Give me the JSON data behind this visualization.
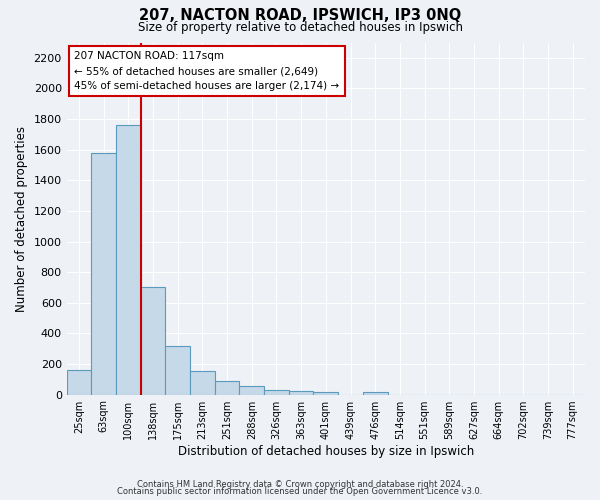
{
  "title": "207, NACTON ROAD, IPSWICH, IP3 0NQ",
  "subtitle": "Size of property relative to detached houses in Ipswich",
  "xlabel": "Distribution of detached houses by size in Ipswich",
  "ylabel": "Number of detached properties",
  "bar_color": "#c5d9e8",
  "bar_edge_color": "#5a9abf",
  "background_color": "#eef2f7",
  "grid_color": "#ffffff",
  "annotation_box_color": "#ffffff",
  "annotation_box_edge": "#cc0000",
  "vline_color": "#cc0000",
  "bin_labels": [
    "25sqm",
    "63sqm",
    "100sqm",
    "138sqm",
    "175sqm",
    "213sqm",
    "251sqm",
    "288sqm",
    "326sqm",
    "363sqm",
    "401sqm",
    "439sqm",
    "476sqm",
    "514sqm",
    "551sqm",
    "589sqm",
    "627sqm",
    "664sqm",
    "702sqm",
    "739sqm",
    "777sqm"
  ],
  "bar_values": [
    160,
    1580,
    1760,
    700,
    315,
    155,
    90,
    55,
    30,
    25,
    15,
    0,
    20,
    0,
    0,
    0,
    0,
    0,
    0,
    0,
    0
  ],
  "ylim": [
    0,
    2300
  ],
  "yticks": [
    0,
    200,
    400,
    600,
    800,
    1000,
    1200,
    1400,
    1600,
    1800,
    2000,
    2200
  ],
  "annotation_line1": "207 NACTON ROAD: 117sqm",
  "annotation_line2": "← 55% of detached houses are smaller (2,649)",
  "annotation_line3": "45% of semi-detached houses are larger (2,174) →",
  "footnote1": "Contains HM Land Registry data © Crown copyright and database right 2024.",
  "footnote2": "Contains public sector information licensed under the Open Government Licence v3.0."
}
